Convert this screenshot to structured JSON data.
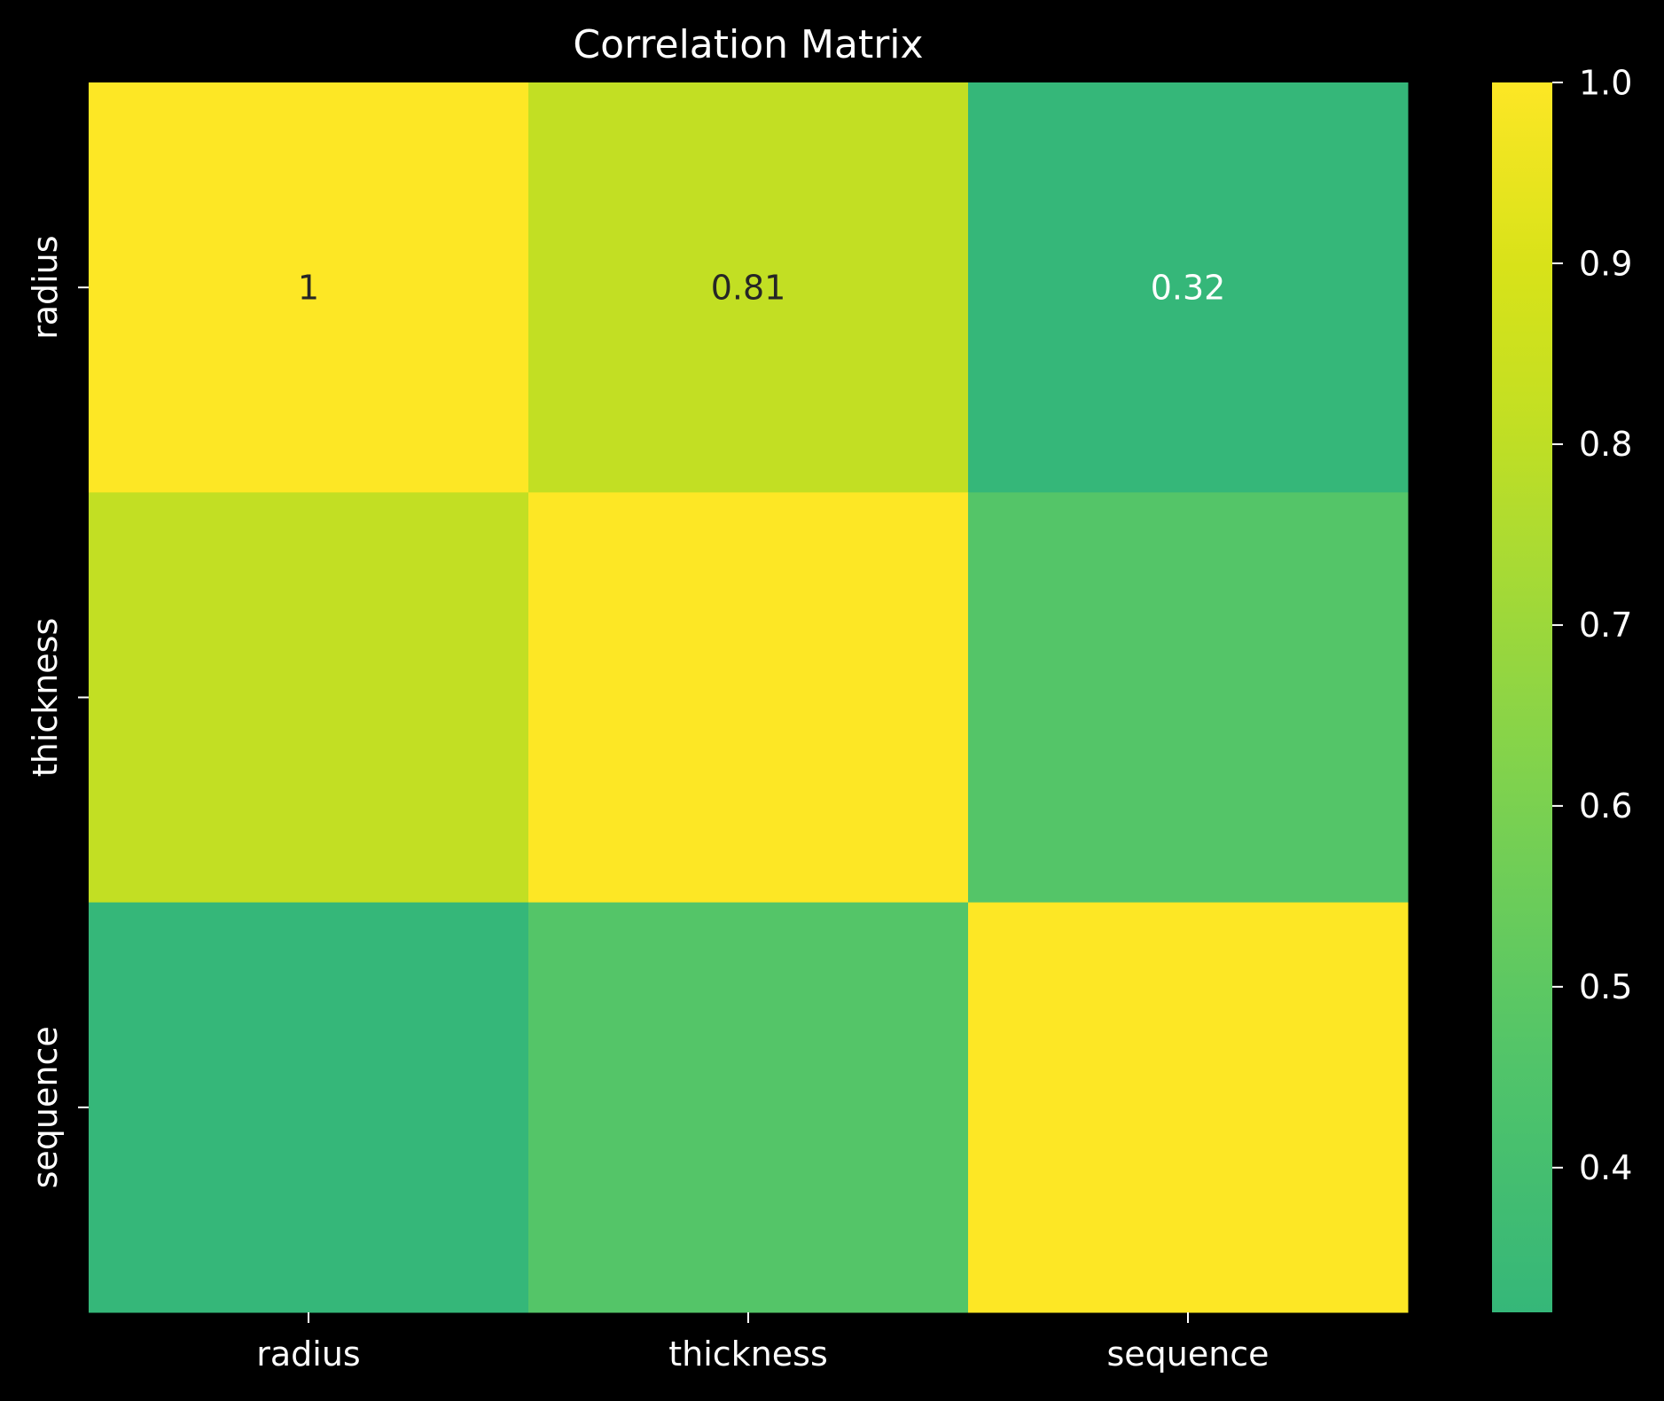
{
  "chart_data": {
    "type": "heatmap",
    "title": "Correlation Matrix",
    "x_labels": [
      "radius",
      "thickness",
      "sequence"
    ],
    "y_labels": [
      "radius",
      "thickness",
      "sequence"
    ],
    "values": [
      [
        1.0,
        0.81,
        0.32
      ],
      [
        0.81,
        1.0,
        0.47
      ],
      [
        0.32,
        0.47,
        1.0
      ]
    ],
    "annotations": [
      [
        "1",
        "0.81",
        "0.32"
      ],
      [
        "",
        "",
        ""
      ],
      [
        "",
        "",
        ""
      ]
    ],
    "colorbar": {
      "min": 0.32,
      "max": 1.0,
      "ticks": [
        "0.4",
        "0.5",
        "0.6",
        "0.7",
        "0.8",
        "0.9",
        "1.0"
      ],
      "tick_values": [
        0.4,
        0.5,
        0.6,
        0.7,
        0.8,
        0.9,
        1.0
      ]
    },
    "colormap": [
      {
        "v": 0.32,
        "color": "#35b779"
      },
      {
        "v": 0.47,
        "color": "#54c568"
      },
      {
        "v": 0.6,
        "color": "#7ad151"
      },
      {
        "v": 0.81,
        "color": "#c2df23"
      },
      {
        "v": 0.9,
        "color": "#d8e219"
      },
      {
        "v": 1.0,
        "color": "#fde725"
      }
    ],
    "background": "#000000",
    "text_color": "#ffffff"
  }
}
